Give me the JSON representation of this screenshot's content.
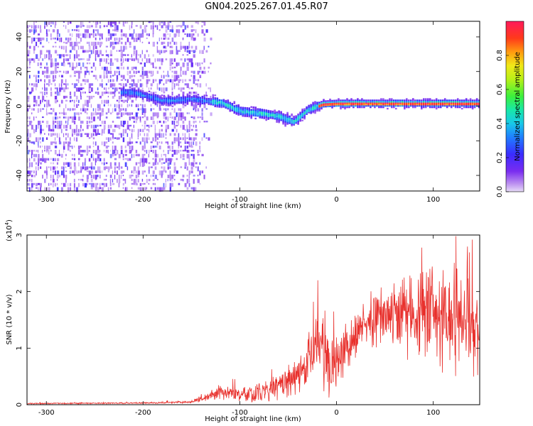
{
  "title": "GN04.2025.267.01.45.R07",
  "colors": {
    "snr_line": "#e8302c",
    "ridge": "#e23a3a"
  },
  "chart_data": [
    {
      "type": "heatmap",
      "xlabel": "Height of straight line (km)",
      "ylabel": "Frequency (Hz)",
      "xlim": [
        -320,
        148
      ],
      "ylim": [
        -49,
        49
      ],
      "x_ticks": [
        -300,
        -200,
        -100,
        0,
        100
      ],
      "y_ticks": [
        -40,
        -20,
        0,
        20,
        40
      ],
      "colorbar": {
        "label": "Normalized spectral amplitude",
        "range": [
          0,
          1
        ],
        "ticks": [
          "0.0",
          "0.2",
          "0.4",
          "0.6",
          "0.8"
        ],
        "ticks_values": [
          0,
          0.2,
          0.4,
          0.6,
          0.8
        ],
        "colormap": "rainbow (purple to red)"
      },
      "signal": {
        "description": "noise dominated below -150 km; signal ridge near 0 Hz from about -220 km, strongest from -20 km to 148 km",
        "ridge": [
          {
            "x": -210,
            "y": 8
          },
          {
            "x": -180,
            "y": 3
          },
          {
            "x": -150,
            "y": 4
          },
          {
            "x": -120,
            "y": 2
          },
          {
            "x": -100,
            "y": -3
          },
          {
            "x": -80,
            "y": -4
          },
          {
            "x": -60,
            "y": -6
          },
          {
            "x": -45,
            "y": -9
          },
          {
            "x": -30,
            "y": -2
          },
          {
            "x": -15,
            "y": 1
          },
          {
            "x": 0,
            "y": 1.5
          },
          {
            "x": 50,
            "y": 1.5
          },
          {
            "x": 100,
            "y": 1.5
          },
          {
            "x": 148,
            "y": 1.5
          }
        ]
      }
    },
    {
      "type": "line",
      "xlabel": "Height of straight line (km)",
      "ylabel": "SNR (10 * v/v)",
      "y_multiplier": "(x10",
      "y_multiplier_exp": "4",
      "y_multiplier_close": ")",
      "xlim": [
        -320,
        148
      ],
      "ylim": [
        0,
        3
      ],
      "x_ticks": [
        -300,
        -200,
        -100,
        0,
        100
      ],
      "y_ticks": [
        0,
        1,
        2,
        3
      ],
      "series": [
        {
          "envelope_x": [
            -320,
            -200,
            -150,
            -135,
            -120,
            -100,
            -80,
            -60,
            -40,
            -30,
            -20,
            -10,
            -5,
            0,
            10,
            20,
            30,
            40,
            50,
            60,
            70,
            80,
            90,
            100,
            110,
            120,
            130,
            140,
            148
          ],
          "envelope_y": [
            0.02,
            0.03,
            0.05,
            0.12,
            0.22,
            0.18,
            0.22,
            0.3,
            0.5,
            0.75,
            1.2,
            0.8,
            0.6,
            0.75,
            1.0,
            1.2,
            1.35,
            1.5,
            1.6,
            1.55,
            1.6,
            1.55,
            1.6,
            1.55,
            1.5,
            1.5,
            1.45,
            1.4,
            1.4
          ],
          "noise_amplitude": [
            0.01,
            0.01,
            0.02,
            0.08,
            0.12,
            0.1,
            0.15,
            0.2,
            0.35,
            0.4,
            0.6,
            0.5,
            0.45,
            0.4,
            0.35,
            0.35,
            0.35,
            0.4,
            0.45,
            0.55,
            0.6,
            0.65,
            0.7,
            0.75,
            0.8,
            0.8,
            0.75,
            0.7,
            0.7
          ]
        }
      ]
    }
  ]
}
